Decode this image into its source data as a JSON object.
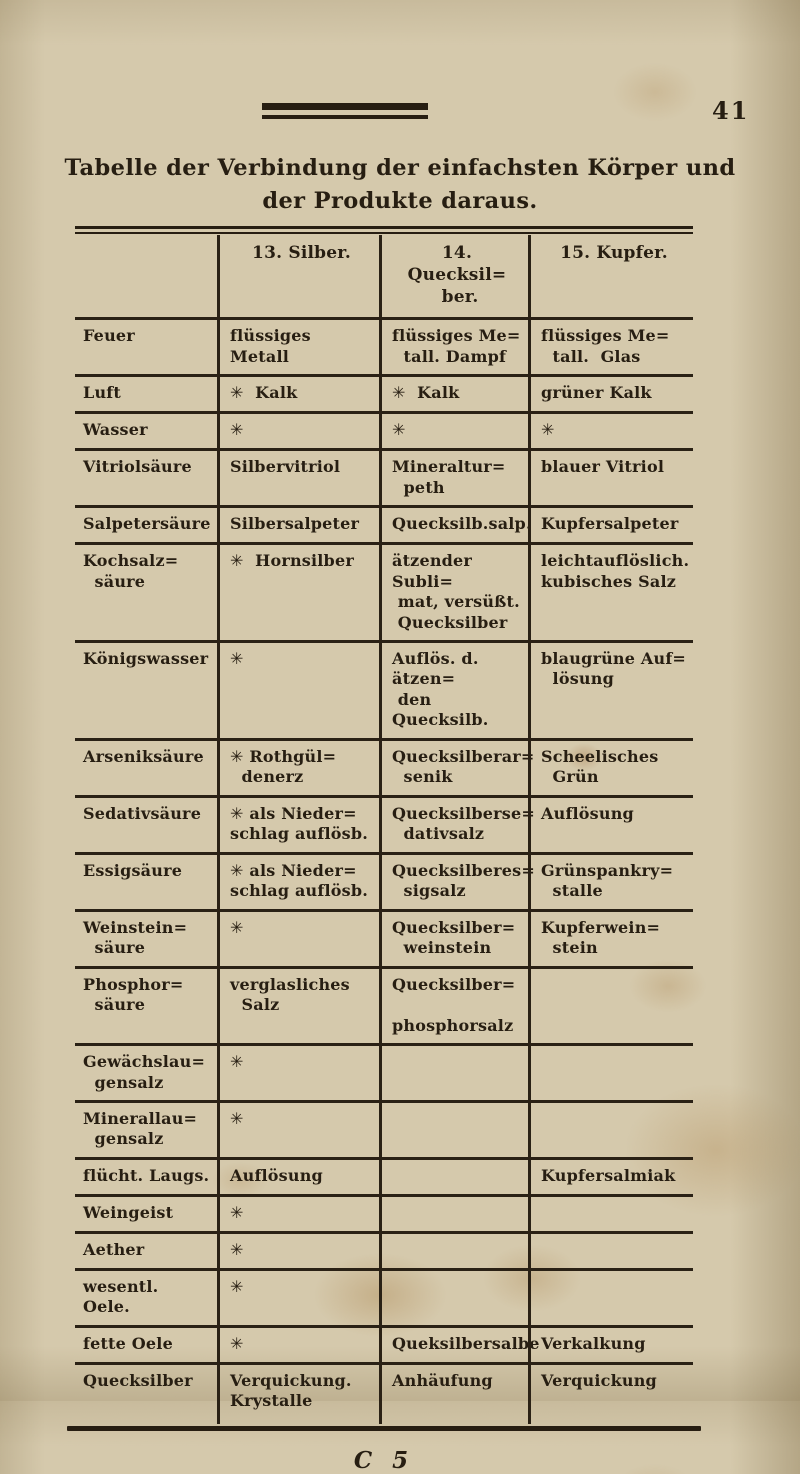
{
  "page": {
    "number": "41",
    "title_line1": "Tabelle der Verbindung der einfachsten Körper und",
    "title_line2": "der Produkte daraus.",
    "signature": "C 5"
  },
  "colors": {
    "paper": "#d5c9ac",
    "ink": "#271e12"
  },
  "icons": {
    "asterisk": "✳"
  },
  "table": {
    "columns": [
      "",
      "13. Silber.",
      "14. Quecksil=\n ber.",
      "15. Kupfer."
    ],
    "rows": [
      {
        "label": "Feuer",
        "cells": [
          "flüssiges Metall",
          "flüssiges Me=\n  tall. Dampf",
          "flüssiges Me=\n  tall.  Glas"
        ]
      },
      {
        "label": "Luft",
        "cells": [
          "✳  Kalk",
          "✳  Kalk",
          "grüner Kalk"
        ]
      },
      {
        "label": "Wasser",
        "cells": [
          "✳",
          "✳",
          "✳"
        ]
      },
      {
        "label": "Vitriolsäure",
        "cells": [
          "Silbervitriol",
          "Mineraltur=\n  peth",
          "blauer Vitriol"
        ]
      },
      {
        "label": "Salpetersäure",
        "cells": [
          "Silbersalpeter",
          "Quecksilb.salp.",
          "Kupfersalpeter"
        ]
      },
      {
        "label": "Kochsalz=\n  säure",
        "cells": [
          "✳  Hornsilber",
          "ätzender Subli=\n mat, versüßt.\n Quecksilber",
          "leichtauflöslich.\nkubisches Salz"
        ]
      },
      {
        "label": "Königswasser",
        "cells": [
          "✳",
          "Auflös. d. ätzen=\n den Quecksilb.",
          "blaugrüne Auf=\n  lösung"
        ]
      },
      {
        "label": "Arseniksäure",
        "cells": [
          "✳ Rothgül=\n  denerz",
          "Quecksilberar=\n  senik",
          "Scheelisches\n  Grün"
        ]
      },
      {
        "label": "Sedativsäure",
        "cells": [
          "✳ als Nieder=\nschlag auflösb.",
          "Quecksilberse=\n  dativsalz",
          "Auflösung"
        ]
      },
      {
        "label": "Essigsäure",
        "cells": [
          "✳ als Nieder=\nschlag auflösb.",
          "Quecksilberes=\n  sigsalz",
          "Grünspankry=\n  stalle"
        ]
      },
      {
        "label": "Weinstein=\n  säure",
        "cells": [
          "✳",
          "Quecksilber=\n  weinstein",
          "Kupferwein=\n  stein"
        ]
      },
      {
        "label": "Phosphor=\n  säure",
        "cells": [
          "verglasliches\n  Salz",
          "Quecksilber=\n  phosphorsalz",
          ""
        ]
      },
      {
        "label": "Gewächslau=\n  gensalz",
        "cells": [
          "✳",
          "",
          ""
        ]
      },
      {
        "label": "Minerallau=\n  gensalz",
        "cells": [
          "✳",
          "",
          ""
        ]
      },
      {
        "label": "flücht. Laugs.",
        "cells": [
          "Auflösung",
          "",
          "Kupfersalmiak"
        ]
      },
      {
        "label": "Weingeist",
        "cells": [
          "✳",
          "",
          ""
        ]
      },
      {
        "label": "Aether",
        "cells": [
          "✳",
          "",
          ""
        ]
      },
      {
        "label": "wesentl. Oele.",
        "cells": [
          "✳",
          "",
          ""
        ]
      },
      {
        "label": "fette Oele",
        "cells": [
          "✳",
          "Queksilbersalbe",
          "Verkalkung"
        ]
      },
      {
        "label": "Quecksilber",
        "cells": [
          "Verquickung.\nKrystalle",
          "Anhäufung",
          "Verquickung"
        ]
      }
    ]
  }
}
